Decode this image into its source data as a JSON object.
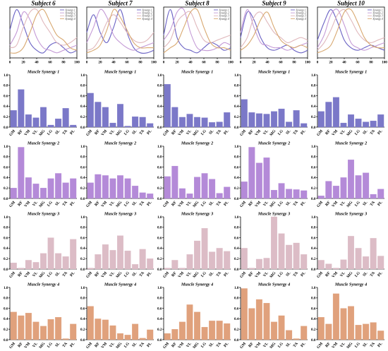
{
  "colors": {
    "synergy1": "#7b78c8",
    "synergy2": "#b48ad8",
    "synergy3": "#dcbcc6",
    "synergy4": "#e0a17c",
    "line_synergy1": "#6a62c4",
    "line_synergy2": "#c49ad6",
    "line_synergy3": "#e0b8bc",
    "line_synergy4": "#d8a870",
    "axis": "#000000"
  },
  "chart_data": {
    "type": "figure-grid",
    "subjects": [
      "Subject 6",
      "Subject 7",
      "Subject 8",
      "Subject 9",
      "Subject 10"
    ],
    "muscles": [
      "GM",
      "RF",
      "VM",
      "VL",
      "MG",
      "LG",
      "SL",
      "TA",
      "PL"
    ],
    "line_plots": {
      "type": "line",
      "xlim": [
        0,
        100
      ],
      "ylim": [
        0,
        1
      ],
      "xticks": [
        "0",
        "20",
        "40",
        "60",
        "80",
        "100"
      ],
      "legend": [
        "Synergy 1",
        "Synergy 2",
        "Synergy 3",
        "Synergy 4"
      ],
      "x": [
        0,
        10,
        20,
        30,
        40,
        50,
        60,
        70,
        80,
        90,
        100
      ],
      "subjects": [
        {
          "series": [
            {
              "name": "Synergy 1",
              "values": [
                0.55,
                0.95,
                0.65,
                0.3,
                0.15,
                0.1,
                0.25,
                0.3,
                0.2,
                0.1,
                0.15
              ]
            },
            {
              "name": "Synergy 2",
              "values": [
                0.25,
                0.5,
                0.9,
                0.75,
                0.4,
                0.2,
                0.15,
                0.1,
                0.15,
                0.2,
                0.25
              ]
            },
            {
              "name": "Synergy 3",
              "values": [
                0.2,
                0.25,
                0.6,
                0.9,
                0.95,
                0.7,
                0.5,
                0.3,
                0.25,
                0.3,
                0.4
              ]
            },
            {
              "name": "Synergy 4",
              "values": [
                0.1,
                0.1,
                0.2,
                0.5,
                0.85,
                0.95,
                0.7,
                0.45,
                0.35,
                0.2,
                0.15
              ]
            }
          ]
        },
        {
          "series": [
            {
              "name": "Synergy 1",
              "values": [
                0.5,
                0.85,
                0.5,
                0.3,
                0.6,
                0.95,
                0.5,
                0.2,
                0.1,
                0.1,
                0.15
              ]
            },
            {
              "name": "Synergy 2",
              "values": [
                0.3,
                0.6,
                0.95,
                0.8,
                0.45,
                0.3,
                0.2,
                0.15,
                0.2,
                0.25,
                0.3
              ]
            },
            {
              "name": "Synergy 3",
              "values": [
                0.15,
                0.2,
                0.4,
                0.7,
                0.85,
                0.7,
                0.5,
                0.35,
                0.3,
                0.35,
                0.5
              ]
            },
            {
              "name": "Synergy 4",
              "values": [
                0.1,
                0.15,
                0.25,
                0.55,
                0.95,
                0.8,
                0.55,
                0.3,
                0.2,
                0.2,
                0.2
              ]
            }
          ]
        },
        {
          "series": [
            {
              "name": "Synergy 1",
              "values": [
                0.45,
                0.95,
                0.4,
                0.2,
                0.15,
                0.1,
                0.2,
                0.3,
                0.25,
                0.15,
                0.2
              ]
            },
            {
              "name": "Synergy 2",
              "values": [
                0.35,
                0.55,
                0.9,
                0.95,
                0.5,
                0.2,
                0.15,
                0.15,
                0.2,
                0.3,
                0.25
              ]
            },
            {
              "name": "Synergy 3",
              "values": [
                0.2,
                0.35,
                0.7,
                0.85,
                0.9,
                0.6,
                0.35,
                0.3,
                0.35,
                0.4,
                0.45
              ]
            },
            {
              "name": "Synergy 4",
              "values": [
                0.1,
                0.2,
                0.3,
                0.6,
                0.9,
                0.95,
                0.6,
                0.3,
                0.2,
                0.2,
                0.15
              ]
            }
          ]
        },
        {
          "series": [
            {
              "name": "Synergy 1",
              "values": [
                0.4,
                0.9,
                0.75,
                0.4,
                0.2,
                0.15,
                0.2,
                0.25,
                0.15,
                0.1,
                0.15
              ]
            },
            {
              "name": "Synergy 2",
              "values": [
                0.5,
                0.95,
                0.6,
                0.3,
                0.25,
                0.2,
                0.2,
                0.15,
                0.2,
                0.25,
                0.3
              ]
            },
            {
              "name": "Synergy 3",
              "values": [
                0.2,
                0.4,
                0.8,
                0.9,
                0.7,
                0.5,
                0.4,
                0.3,
                0.35,
                0.4,
                0.35
              ]
            },
            {
              "name": "Synergy 4",
              "values": [
                0.15,
                0.25,
                0.45,
                0.75,
                0.9,
                0.6,
                0.35,
                0.25,
                0.2,
                0.25,
                0.2
              ]
            }
          ]
        },
        {
          "series": [
            {
              "name": "Synergy 1",
              "values": [
                0.35,
                0.7,
                0.95,
                0.7,
                0.35,
                0.2,
                0.15,
                0.2,
                0.25,
                0.2,
                0.15
              ]
            },
            {
              "name": "Synergy 2",
              "values": [
                0.2,
                0.45,
                0.85,
                0.95,
                0.65,
                0.3,
                0.2,
                0.15,
                0.2,
                0.25,
                0.3
              ]
            },
            {
              "name": "Synergy 3",
              "values": [
                0.15,
                0.3,
                0.55,
                0.85,
                0.95,
                0.75,
                0.5,
                0.35,
                0.3,
                0.35,
                0.4
              ]
            },
            {
              "name": "Synergy 4",
              "values": [
                0.1,
                0.15,
                0.25,
                0.55,
                0.9,
                0.95,
                0.7,
                0.4,
                0.25,
                0.2,
                0.2
              ]
            }
          ]
        }
      ]
    },
    "bar_plots": {
      "type": "bar",
      "ylim": [
        0,
        1
      ],
      "yticks": [
        "0.0",
        "0.2",
        "0.4",
        "0.6",
        "0.8",
        "1.0"
      ],
      "rows": [
        {
          "title": "Muscle Synergy 1",
          "values": [
            [
              0.32,
              0.72,
              0.24,
              0.18,
              0.38,
              0.04,
              0.16,
              0.36,
              0.04
            ],
            [
              0.65,
              0.48,
              0.38,
              0.08,
              0.44,
              0.02,
              0.2,
              0.19,
              0.07
            ],
            [
              0.82,
              0.38,
              0.19,
              0.25,
              0.19,
              0.18,
              0.09,
              0.1,
              0.28
            ],
            [
              0.53,
              0.28,
              0.26,
              0.25,
              0.3,
              0.35,
              0.1,
              0.32,
              0.07
            ],
            [
              0.3,
              0.48,
              0.57,
              0.08,
              0.24,
              0.16,
              0.1,
              0.12,
              0.24
            ]
          ]
        },
        {
          "title": "Muscle Synergy 2",
          "values": [
            [
              0.2,
              0.98,
              0.4,
              0.28,
              0.2,
              0.38,
              0.48,
              0.3,
              0.38
            ],
            [
              0.3,
              0.46,
              0.44,
              0.38,
              0.44,
              0.38,
              0.24,
              0.11,
              0.09
            ],
            [
              0.42,
              0.62,
              0.19,
              0.09,
              0.41,
              0.48,
              0.37,
              0.1,
              0.22
            ],
            [
              0.32,
              0.98,
              0.68,
              0.78,
              0.16,
              0.29,
              0.18,
              0.17,
              0.15
            ],
            [
              0.05,
              0.33,
              0.24,
              0.4,
              0.74,
              0.44,
              0.49,
              0.08,
              0.18
            ]
          ]
        },
        {
          "title": "Muscle Synergy 3",
          "values": [
            [
              0.12,
              0.02,
              0.17,
              0.13,
              0.3,
              0.6,
              0.3,
              0.24,
              0.57
            ],
            [
              0.02,
              0.28,
              0.47,
              0.36,
              0.64,
              0.35,
              0.09,
              0.38,
              0.2
            ],
            [
              0.02,
              0.17,
              0.02,
              0.28,
              0.54,
              0.78,
              0.33,
              0.4,
              0.34
            ],
            [
              0.4,
              0.02,
              0.19,
              0.21,
              1.0,
              0.68,
              0.46,
              0.5,
              0.28
            ],
            [
              0.17,
              0.1,
              0.02,
              0.18,
              0.63,
              0.4,
              0.24,
              0.59,
              0.25
            ]
          ]
        },
        {
          "title": "Muscle Synergy 4",
          "values": [
            [
              0.53,
              0.46,
              0.51,
              0.34,
              0.26,
              0.39,
              0.43,
              0.02,
              0.3
            ],
            [
              0.64,
              0.4,
              0.38,
              0.27,
              0.12,
              0.09,
              0.3,
              0.03,
              0.19
            ],
            [
              0.12,
              0.2,
              0.34,
              0.67,
              0.53,
              0.24,
              0.36,
              0.36,
              0.31
            ],
            [
              0.98,
              0.6,
              0.77,
              0.7,
              0.34,
              0.46,
              0.18,
              0.02,
              0.26
            ],
            [
              0.43,
              0.3,
              0.88,
              0.6,
              0.64,
              0.28,
              0.3,
              0.33,
              0.17
            ]
          ]
        }
      ]
    }
  }
}
